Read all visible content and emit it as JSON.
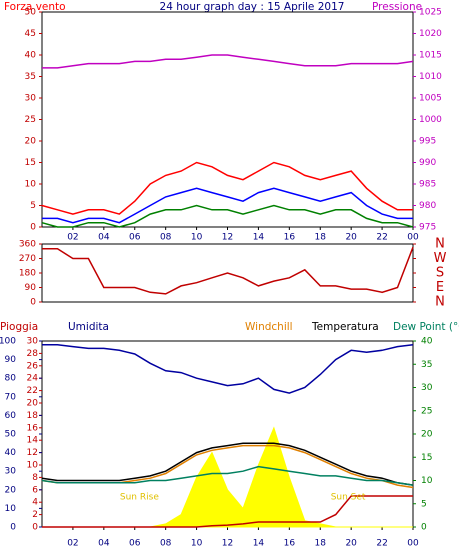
{
  "chart_data": [
    {
      "type": "line",
      "title": "24 hour graph day : 15 Aprile 2017",
      "ylabel": "Forza vento",
      "y2label": "Pressione",
      "x": [
        0,
        1,
        2,
        3,
        4,
        5,
        6,
        7,
        8,
        9,
        10,
        11,
        12,
        13,
        14,
        15,
        16,
        17,
        18,
        19,
        20,
        21,
        22,
        23,
        24
      ],
      "xlim": [
        0,
        24
      ],
      "xticks": [
        {
          "value": 2,
          "label": "02"
        },
        {
          "value": 4,
          "label": "04"
        },
        {
          "value": 6,
          "label": "06"
        },
        {
          "value": 8,
          "label": "08"
        },
        10,
        12,
        14,
        16,
        18,
        20,
        22,
        {
          "value": 24,
          "label": "00"
        }
      ],
      "ylim": [
        0,
        50
      ],
      "yticks": [
        0,
        5,
        10,
        15,
        20,
        25,
        30,
        35,
        40,
        45,
        50
      ],
      "y2lim": [
        975,
        1025
      ],
      "y2ticks": [
        975,
        980,
        985,
        990,
        995,
        1000,
        1005,
        1010,
        1015,
        1020,
        1025
      ],
      "y2color": "#c000c0",
      "series": [
        {
          "color": "#ff0000",
          "values": [
            5,
            4,
            3,
            4,
            4,
            3,
            6,
            10,
            12,
            13,
            15,
            14,
            12,
            11,
            13,
            15,
            14,
            12,
            11,
            12,
            13,
            9,
            6,
            4,
            4
          ]
        },
        {
          "color": "#0000ff",
          "values": [
            2,
            2,
            1,
            2,
            2,
            1,
            3,
            5,
            7,
            8,
            9,
            8,
            7,
            6,
            8,
            9,
            8,
            7,
            6,
            7,
            8,
            5,
            3,
            2,
            2
          ]
        },
        {
          "color": "#008000",
          "values": [
            1,
            0,
            0,
            1,
            1,
            0,
            1,
            3,
            4,
            4,
            5,
            4,
            4,
            3,
            4,
            5,
            4,
            4,
            3,
            4,
            4,
            2,
            1,
            1,
            0
          ]
        },
        {
          "color": "#c000c0",
          "axis": "y2",
          "values": [
            1012,
            1012,
            1012.5,
            1013,
            1013,
            1013,
            1013.5,
            1013.5,
            1014,
            1014,
            1014.5,
            1015,
            1015,
            1014.5,
            1014,
            1013.5,
            1013,
            1012.5,
            1012.5,
            1012.5,
            1013,
            1013,
            1013,
            1013,
            1013.5
          ]
        }
      ]
    },
    {
      "type": "line",
      "x": [
        0,
        1,
        2,
        3,
        4,
        5,
        6,
        7,
        8,
        9,
        10,
        11,
        12,
        13,
        14,
        15,
        16,
        17,
        18,
        19,
        20,
        21,
        22,
        23,
        24
      ],
      "xlim": [
        0,
        24
      ],
      "ylim": [
        0,
        360
      ],
      "yticks": [
        0,
        90,
        180,
        270,
        360
      ],
      "y2lim": [
        0,
        360
      ],
      "y2ticks": [
        {
          "value": 360,
          "label": "N"
        },
        {
          "value": 270,
          "label": "W"
        },
        {
          "value": 180,
          "label": "S"
        },
        {
          "value": 90,
          "label": "E"
        },
        {
          "value": 0,
          "label": "N"
        }
      ],
      "y2color": "#c00000",
      "series": [
        {
          "color": "#c00000",
          "values": [
            330,
            330,
            270,
            270,
            90,
            90,
            90,
            60,
            50,
            100,
            120,
            150,
            180,
            150,
            100,
            130,
            150,
            200,
            100,
            100,
            80,
            80,
            60,
            90,
            340
          ]
        }
      ]
    },
    {
      "type": "line",
      "ylabel": "Pioggia",
      "y3label": "Umidita",
      "x": [
        0,
        1,
        2,
        3,
        4,
        5,
        6,
        7,
        8,
        9,
        10,
        11,
        12,
        13,
        14,
        15,
        16,
        17,
        18,
        19,
        20,
        21,
        22,
        23,
        24
      ],
      "xlim": [
        0,
        24
      ],
      "xticks": [
        {
          "value": 2,
          "label": "02"
        },
        {
          "value": 4,
          "label": "04"
        },
        {
          "value": 6,
          "label": "06"
        },
        {
          "value": 8,
          "label": "08"
        },
        10,
        12,
        14,
        16,
        18,
        20,
        22,
        {
          "value": 24,
          "label": "00"
        }
      ],
      "ylim": [
        0,
        30
      ],
      "yticks": [
        0,
        2,
        4,
        6,
        8,
        10,
        12,
        14,
        16,
        18,
        20,
        22,
        24,
        26,
        28,
        30
      ],
      "ycolor": "#c00000",
      "y3lim": [
        0,
        100
      ],
      "y3ticks": [
        0,
        10,
        20,
        30,
        40,
        50,
        60,
        70,
        80,
        90,
        100
      ],
      "y3color": "#000080",
      "y2lim": [
        0,
        40
      ],
      "y2ticks": [
        0,
        5,
        10,
        15,
        20,
        25,
        30,
        35,
        40
      ],
      "y2color": "#008000",
      "annotations": [
        {
          "text": "Sun Rise",
          "x": 6.3
        },
        {
          "text": "Sun Set",
          "x": 19.8
        }
      ],
      "series": [
        {
          "color": "#ffff00",
          "style": "area",
          "values": [
            0,
            0,
            0,
            0,
            0,
            0,
            0,
            0,
            0.5,
            2,
            8,
            12,
            6,
            3,
            10,
            16,
            8,
            1,
            0.5,
            0,
            0,
            0,
            0,
            0,
            0
          ]
        },
        {
          "color": "#0000a0",
          "axis": "y3",
          "values": [
            98,
            98,
            97,
            96,
            96,
            95,
            93,
            88,
            84,
            83,
            80,
            78,
            76,
            77,
            80,
            74,
            72,
            75,
            82,
            90,
            95,
            94,
            95,
            97,
            98
          ]
        },
        {
          "name": "Windchill",
          "color": "#e08000",
          "axis": "y2",
          "values": [
            10,
            9.5,
            9.5,
            9.5,
            9.5,
            9.5,
            10,
            10.5,
            11.5,
            13.5,
            15.5,
            16.5,
            17,
            17.5,
            17.5,
            17.5,
            17,
            16,
            14.5,
            13,
            11.5,
            10.5,
            10,
            9,
            8.5
          ]
        },
        {
          "name": "Temperatura",
          "color": "#000000",
          "axis": "y2",
          "values": [
            10.5,
            10,
            10,
            10,
            10,
            10,
            10.5,
            11,
            12,
            14,
            16,
            17,
            17.5,
            18,
            18,
            18,
            17.5,
            16.5,
            15,
            13.5,
            12,
            11,
            10.5,
            9.5,
            9
          ]
        },
        {
          "name": "Dew Point (°C",
          "color": "#008060",
          "axis": "y2",
          "values": [
            10,
            9.5,
            9.5,
            9.5,
            9.5,
            9.5,
            9.5,
            10,
            10,
            10.5,
            11,
            11.5,
            11.5,
            12,
            13,
            12.5,
            12,
            11.5,
            11,
            11,
            10.5,
            10,
            10,
            9.5,
            9
          ]
        },
        {
          "color": "#c00000",
          "values": [
            0,
            0,
            0,
            0,
            0,
            0,
            0,
            0,
            0,
            0,
            0,
            0.2,
            0.3,
            0.5,
            0.8,
            0.8,
            0.8,
            0.8,
            0.8,
            2,
            5,
            5,
            5,
            5,
            5
          ]
        }
      ]
    }
  ]
}
